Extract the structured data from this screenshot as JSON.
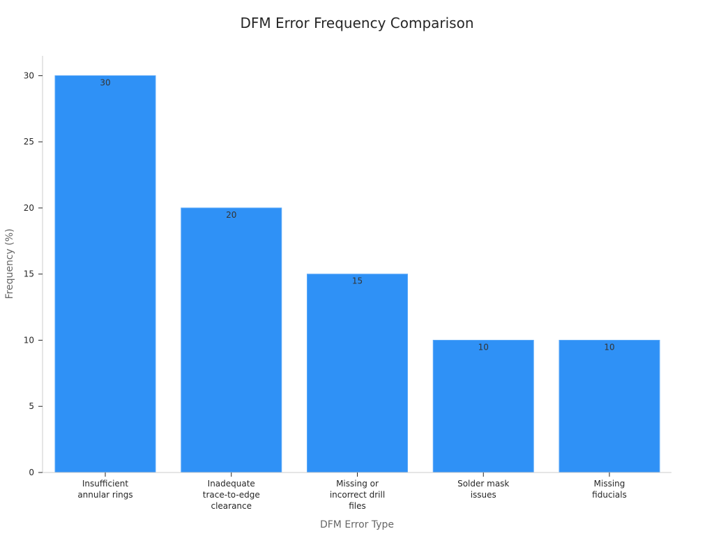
{
  "chart_data": {
    "type": "bar",
    "title": "DFM Error Frequency Comparison",
    "xlabel": "DFM Error Type",
    "ylabel": "Frequency (%)",
    "categories": [
      "Insufficient annular rings",
      "Inadequate trace-to-edge clearance",
      "Missing or incorrect drill files",
      "Solder mask issues",
      "Missing fiducials"
    ],
    "category_lines": [
      [
        "Insufficient",
        "annular rings"
      ],
      [
        "Inadequate",
        "trace-to-edge",
        "clearance"
      ],
      [
        "Missing or",
        "incorrect drill",
        "files"
      ],
      [
        "Solder mask",
        "issues"
      ],
      [
        "Missing",
        "fiducials"
      ]
    ],
    "values": [
      30,
      20,
      15,
      10,
      10
    ],
    "data_labels": [
      "30",
      "20",
      "15",
      "10",
      "10"
    ],
    "ylim": [
      0,
      31.5
    ],
    "yticks": [
      0,
      5,
      10,
      15,
      20,
      25,
      30
    ],
    "grid": false,
    "legend": "none",
    "bar_color": "#2f91f6"
  }
}
